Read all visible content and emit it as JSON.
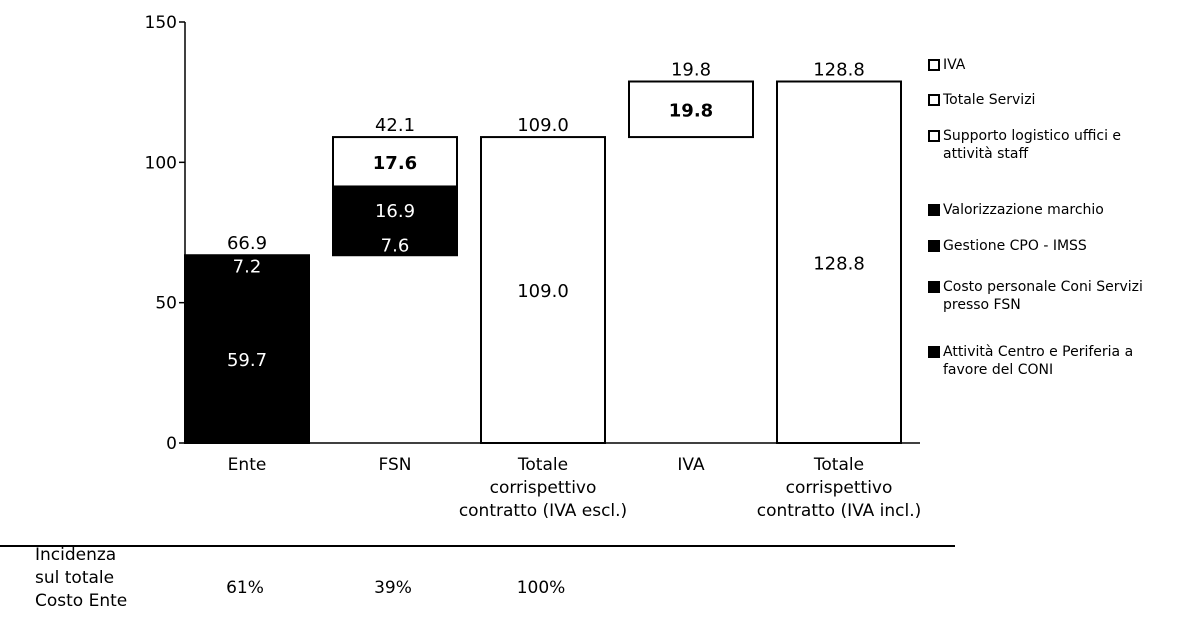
{
  "chart_data": {
    "type": "bar",
    "ylim": [
      0,
      150
    ],
    "yticks": [
      "0",
      "50",
      "100",
      "150"
    ],
    "categories": [
      {
        "lines": [
          "Ente"
        ]
      },
      {
        "lines": [
          "FSN"
        ]
      },
      {
        "lines": [
          "Totale",
          "corrispettivo",
          "contratto (IVA escl.)"
        ]
      },
      {
        "lines": [
          "IVA"
        ]
      },
      {
        "lines": [
          "Totale",
          "corrispettivo",
          "contratto (IVA incl.)"
        ]
      }
    ],
    "bars": [
      {
        "category": "Ente",
        "total_label": "66.9",
        "segments": [
          {
            "from": 0,
            "to": 59.7,
            "value": 59.7,
            "label": "59.7",
            "fill": "#000000",
            "series": "Attività Centro e Periferia a favore del CONI"
          },
          {
            "from": 59.7,
            "to": 66.9,
            "value": 7.2,
            "label": "7.2",
            "fill": "#000000",
            "series": "Costo personale Coni Servizi presso FSN"
          }
        ]
      },
      {
        "category": "FSN",
        "total_label": "42.1",
        "segments": [
          {
            "from": 66.9,
            "to": 74.5,
            "value": 7.6,
            "label": "7.6",
            "fill": "#000000",
            "series": "Gestione CPO - IMSS"
          },
          {
            "from": 74.5,
            "to": 91.4,
            "value": 16.9,
            "label": "16.9",
            "fill": "#000000",
            "series": "Valorizzazione marchio"
          },
          {
            "from": 91.4,
            "to": 109.0,
            "value": 17.6,
            "label": "17.6",
            "bold": true,
            "fill": "#ffffff",
            "series": "Supporto logistico uffici e attività staff"
          }
        ]
      },
      {
        "category": "Totale corrispettivo contratto (IVA escl.)",
        "total_label": "109.0",
        "segments": [
          {
            "from": 0,
            "to": 109.0,
            "value": 109.0,
            "label": "109.0",
            "fill": "#ffffff",
            "series": "Totale Servizi"
          }
        ]
      },
      {
        "category": "IVA",
        "total_label": "19.8",
        "segments": [
          {
            "from": 109.0,
            "to": 128.8,
            "value": 19.8,
            "label": "19.8",
            "bold": true,
            "fill": "#ffffff",
            "series": "IVA"
          }
        ]
      },
      {
        "category": "Totale corrispettivo contratto (IVA incl.)",
        "total_label": "128.8",
        "segments": [
          {
            "from": 0,
            "to": 128.8,
            "value": 128.8,
            "label": "128.8",
            "fill": "#ffffff",
            "series": "Totale Servizi"
          }
        ]
      }
    ],
    "legend_position": "right",
    "grid": false
  },
  "legend": [
    {
      "label": "IVA",
      "color": "#ffffff"
    },
    {
      "label": "Totale Servizi",
      "color": "#ffffff"
    },
    {
      "label": "Supporto logistico uffici e attività staff",
      "color": "#ffffff"
    },
    {
      "label": "Valorizzazione marchio",
      "color": "#000000"
    },
    {
      "label": "Gestione CPO - IMSS",
      "color": "#000000"
    },
    {
      "label": "Costo personale Coni Servizi presso FSN",
      "color": "#000000"
    },
    {
      "label": "Attività Centro e Periferia a favore del CONI",
      "color": "#000000"
    }
  ],
  "incidence": {
    "label": "Incidenza sul totale Costo Ente",
    "values": [
      "61%",
      "39%",
      "100%"
    ]
  }
}
